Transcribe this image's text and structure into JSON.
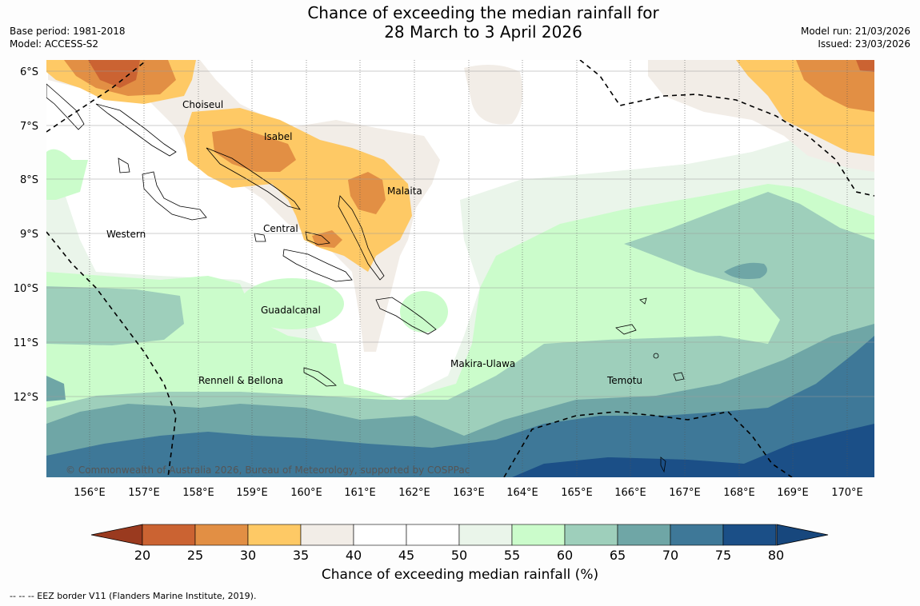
{
  "title_line1": "Chance of exceeding the median rainfall for",
  "title_line2": "28 March to 3 April 2026",
  "base_period": "Base period: 1981-2018",
  "model": "Model: ACCESS-S2",
  "model_run": "Model run: 21/03/2026",
  "issued": "Issued: 23/03/2026",
  "copyright": "© Commonwealth of Australia 2026, Bureau of Meteorology, supported by COSPPac",
  "colorbar_title": "Chance of exceeding median rainfall (%)",
  "footer": "--  --  -- EEZ border V11 (Flanders Marine Institute, 2019).",
  "lat_labels": [
    "6°S",
    "7°S",
    "8°S",
    "9°S",
    "10°S",
    "11°S",
    "12°S"
  ],
  "lon_labels": [
    "156°E",
    "157°E",
    "158°E",
    "159°E",
    "160°E",
    "161°E",
    "162°E",
    "163°E",
    "164°E",
    "165°E",
    "166°E",
    "167°E",
    "168°E",
    "169°E",
    "170°E"
  ],
  "colorbar_ticks": [
    "20",
    "25",
    "30",
    "35",
    "40",
    "45",
    "50",
    "55",
    "60",
    "65",
    "70",
    "75",
    "80"
  ],
  "colorbar_colors": [
    "#b04526",
    "#cb6332",
    "#e28f44",
    "#fec965",
    "#f2ede7",
    "#ffffff",
    "#ffffff",
    "#eaf5ea",
    "#cbfccb",
    "#9ecfbb",
    "#6fa6a6",
    "#3e7898",
    "#1b4f87"
  ],
  "regions": {
    "choiseul": "Choiseul",
    "isabel": "Isabel",
    "malaita": "Malaita",
    "western": "Western",
    "central": "Central",
    "guadalcanal": "Guadalcanal",
    "makira": "Makira-Ulawa",
    "rennell": "Rennell & Bellona",
    "temotu": "Temotu"
  }
}
